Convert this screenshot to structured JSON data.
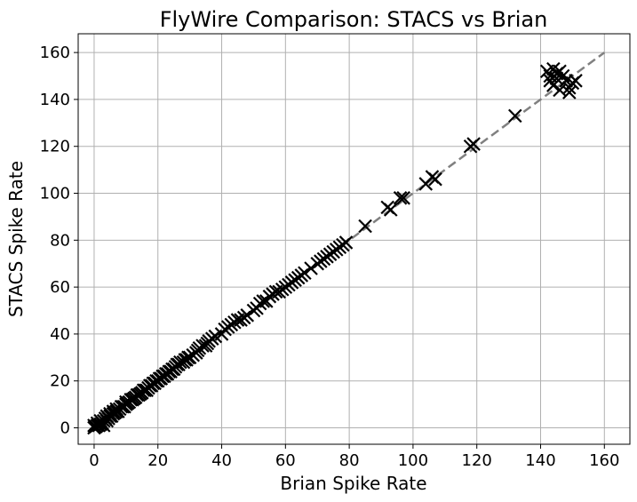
{
  "chart_data": {
    "type": "scatter",
    "title": "FlyWire Comparison: STACS vs Brian",
    "xlabel": "Brian Spike Rate",
    "ylabel": "STACS Spike Rate",
    "xlim": [
      -5,
      168
    ],
    "ylim": [
      -7,
      168
    ],
    "xticks": [
      0,
      20,
      40,
      60,
      80,
      100,
      120,
      140,
      160
    ],
    "yticks": [
      0,
      20,
      40,
      60,
      80,
      100,
      120,
      140,
      160
    ],
    "grid": true,
    "marker": "x",
    "marker_color": "#000000",
    "reference_line": {
      "from": [
        0,
        0
      ],
      "to": [
        160,
        160
      ],
      "style": "dashed",
      "color": "#808080"
    },
    "points": [
      [
        0,
        0
      ],
      [
        0,
        1
      ],
      [
        0.5,
        0.5
      ],
      [
        1,
        1
      ],
      [
        1,
        2
      ],
      [
        1.5,
        1
      ],
      [
        2,
        1.5
      ],
      [
        2,
        3
      ],
      [
        2.5,
        2
      ],
      [
        3,
        3
      ],
      [
        3,
        1
      ],
      [
        3.5,
        4
      ],
      [
        4,
        3
      ],
      [
        4,
        5
      ],
      [
        4.5,
        4
      ],
      [
        5,
        5
      ],
      [
        5,
        6
      ],
      [
        5.5,
        5
      ],
      [
        6,
        6
      ],
      [
        6,
        7
      ],
      [
        6.5,
        6.5
      ],
      [
        7,
        7
      ],
      [
        7,
        8
      ],
      [
        7.5,
        7
      ],
      [
        8,
        8
      ],
      [
        8.5,
        9
      ],
      [
        9,
        9
      ],
      [
        9.5,
        9
      ],
      [
        10,
        10
      ],
      [
        10,
        11
      ],
      [
        10.5,
        10.5
      ],
      [
        11,
        11
      ],
      [
        11.5,
        12
      ],
      [
        12,
        12
      ],
      [
        12.5,
        12.5
      ],
      [
        13,
        13
      ],
      [
        13.5,
        14
      ],
      [
        14,
        14
      ],
      [
        14.5,
        14.5
      ],
      [
        15,
        15
      ],
      [
        15.5,
        16
      ],
      [
        16,
        16
      ],
      [
        16.5,
        16
      ],
      [
        17,
        17
      ],
      [
        17.5,
        18
      ],
      [
        18,
        18
      ],
      [
        18.5,
        19
      ],
      [
        19,
        19
      ],
      [
        19.5,
        20
      ],
      [
        20,
        20
      ],
      [
        20.5,
        21
      ],
      [
        21,
        21
      ],
      [
        21.5,
        22
      ],
      [
        22,
        22
      ],
      [
        22.5,
        23
      ],
      [
        23,
        23
      ],
      [
        23.5,
        24
      ],
      [
        24,
        24
      ],
      [
        24.5,
        25
      ],
      [
        25,
        25
      ],
      [
        25.5,
        26
      ],
      [
        26,
        27
      ],
      [
        26.5,
        27
      ],
      [
        27,
        28
      ],
      [
        28,
        28
      ],
      [
        28.5,
        29
      ],
      [
        29,
        29
      ],
      [
        29.5,
        30
      ],
      [
        30,
        30
      ],
      [
        31,
        31
      ],
      [
        32,
        32
      ],
      [
        32.5,
        33
      ],
      [
        33,
        34
      ],
      [
        34,
        35
      ],
      [
        35,
        35
      ],
      [
        35.5,
        36
      ],
      [
        36,
        37
      ],
      [
        37,
        38
      ],
      [
        38,
        39
      ],
      [
        40,
        40
      ],
      [
        41,
        42
      ],
      [
        42,
        43
      ],
      [
        43,
        44
      ],
      [
        44,
        45
      ],
      [
        45,
        46
      ],
      [
        46,
        46
      ],
      [
        47,
        47
      ],
      [
        48,
        48
      ],
      [
        50,
        50
      ],
      [
        51,
        51
      ],
      [
        52,
        53
      ],
      [
        53,
        54
      ],
      [
        54,
        54
      ],
      [
        55,
        56
      ],
      [
        56,
        57
      ],
      [
        57,
        58
      ],
      [
        58,
        58
      ],
      [
        59,
        59
      ],
      [
        60,
        60
      ],
      [
        61,
        61
      ],
      [
        62,
        62
      ],
      [
        63,
        63
      ],
      [
        64,
        64
      ],
      [
        65,
        65
      ],
      [
        66,
        66
      ],
      [
        68,
        68
      ],
      [
        70,
        70
      ],
      [
        71,
        71
      ],
      [
        72,
        72
      ],
      [
        73,
        73
      ],
      [
        74,
        74
      ],
      [
        75,
        75
      ],
      [
        76,
        76
      ],
      [
        77,
        77
      ],
      [
        78,
        78
      ],
      [
        79,
        79
      ],
      [
        85,
        86
      ],
      [
        92,
        94
      ],
      [
        93,
        93
      ],
      [
        96,
        98
      ],
      [
        97,
        98
      ],
      [
        104,
        104
      ],
      [
        106,
        107
      ],
      [
        107,
        106
      ],
      [
        118,
        120
      ],
      [
        119,
        121
      ],
      [
        132,
        133
      ],
      [
        142,
        152
      ],
      [
        143,
        150
      ],
      [
        143,
        148
      ],
      [
        144,
        153
      ],
      [
        144,
        146
      ],
      [
        145,
        151
      ],
      [
        145,
        149
      ],
      [
        146,
        144
      ],
      [
        146,
        152
      ],
      [
        147,
        150
      ],
      [
        148,
        148
      ],
      [
        149,
        145
      ],
      [
        149,
        143
      ],
      [
        150,
        147
      ],
      [
        151,
        148
      ]
    ]
  }
}
